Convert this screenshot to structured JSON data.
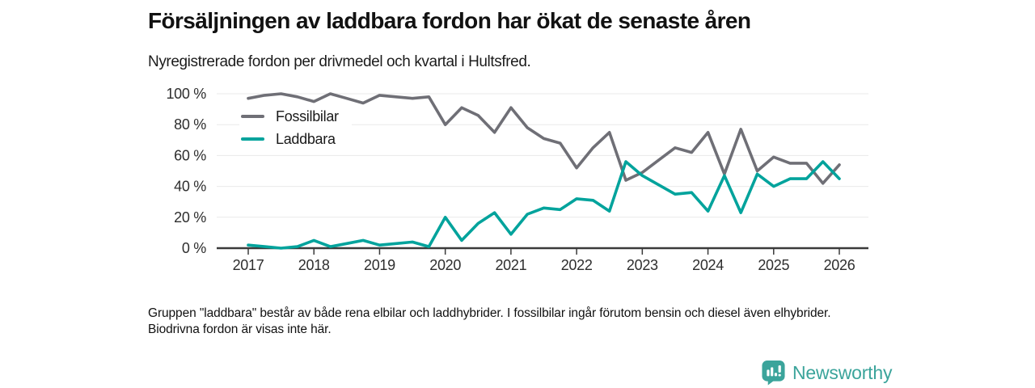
{
  "header": {
    "title": "Försäljningen av laddbara fordon har ökat de senaste åren",
    "subtitle": "Nyregistrerade fordon per drivmedel och kvartal i Hultsfred."
  },
  "chart_data": {
    "type": "line",
    "unit": "%",
    "title": "Nyregistrerade fordon per drivmedel och kvartal i Hultsfred",
    "xlabel": "",
    "ylabel": "",
    "ylim": [
      0,
      100
    ],
    "grid": "horizontal",
    "legend_position": "top-left-inside",
    "x_period_start": "2017-Q1",
    "x_period_end": "2026-Q1",
    "x_step": "quarter",
    "y_ticks": [
      {
        "value": 0,
        "label": "0 %"
      },
      {
        "value": 20,
        "label": "20 %"
      },
      {
        "value": 40,
        "label": "40 %"
      },
      {
        "value": 60,
        "label": "60 %"
      },
      {
        "value": 80,
        "label": "80 %"
      },
      {
        "value": 100,
        "label": "100 %"
      }
    ],
    "x_ticks": [
      {
        "index": 0,
        "label": "2017"
      },
      {
        "index": 4,
        "label": "2018"
      },
      {
        "index": 8,
        "label": "2019"
      },
      {
        "index": 12,
        "label": "2020"
      },
      {
        "index": 16,
        "label": "2021"
      },
      {
        "index": 20,
        "label": "2022"
      },
      {
        "index": 24,
        "label": "2023"
      },
      {
        "index": 28,
        "label": "2024"
      },
      {
        "index": 32,
        "label": "2025"
      },
      {
        "index": 36,
        "label": "2026"
      }
    ],
    "series": [
      {
        "name": "Fossilbilar",
        "color": "#6f6f76",
        "values": [
          97,
          99,
          100,
          98,
          95,
          100,
          97,
          94,
          99,
          98,
          97,
          98,
          80,
          91,
          86,
          75,
          91,
          78,
          71,
          68,
          52,
          65,
          75,
          44,
          49,
          57,
          65,
          62,
          75,
          48,
          77,
          50,
          59,
          55,
          55,
          42,
          54
        ]
      },
      {
        "name": "Laddbara",
        "color": "#00a39c",
        "values": [
          2,
          1,
          0,
          1,
          5,
          1,
          3,
          5,
          2,
          3,
          4,
          1,
          20,
          5,
          16,
          23,
          9,
          22,
          26,
          25,
          32,
          31,
          24,
          56,
          47,
          41,
          35,
          36,
          24,
          47,
          23,
          48,
          40,
          45,
          45,
          56,
          45
        ]
      }
    ]
  },
  "footnote": {
    "text": "Gruppen \"laddbara\" består av både rena elbilar och laddhybrider. I fossilbilar ingår förutom bensin och diesel även elhybrider. Biodrivna fordon är visas inte här."
  },
  "branding": {
    "name": "Newsworthy",
    "color": "#3ba49b"
  }
}
